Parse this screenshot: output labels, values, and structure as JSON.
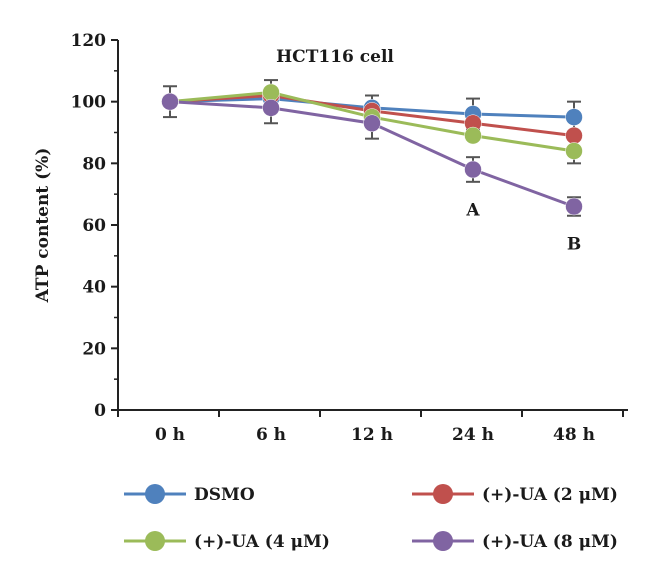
{
  "chart_data": {
    "type": "line",
    "title": "HCT116 cell",
    "xlabel": "",
    "ylabel": "ATP content (%)",
    "categories": [
      "0 h",
      "6 h",
      "12 h",
      "24 h",
      "48 h"
    ],
    "ylim": [
      0,
      120
    ],
    "yticks": [
      0,
      20,
      40,
      60,
      80,
      100,
      120
    ],
    "grid": false,
    "legend_position": "bottom",
    "series": [
      {
        "name": "DSMO",
        "color": "#4f81bd",
        "values": [
          100,
          101,
          98,
          96,
          95
        ],
        "errors": [
          0,
          0,
          0,
          5,
          5
        ]
      },
      {
        "name": "(+)-UA (2 μM)",
        "color": "#c0504d",
        "values": [
          100,
          102,
          97,
          93,
          89
        ],
        "errors": [
          0,
          5,
          5,
          0,
          0
        ]
      },
      {
        "name": "(+)-UA (4 μM)",
        "color": "#9bbb59",
        "values": [
          100,
          103,
          95,
          89,
          84
        ],
        "errors": [
          0,
          0,
          0,
          0,
          4
        ]
      },
      {
        "name": "(+)-UA (8 μM)",
        "color": "#8064a2",
        "values": [
          100,
          98,
          93,
          78,
          66
        ],
        "errors": [
          5,
          5,
          5,
          4,
          3
        ]
      }
    ],
    "annotations": [
      {
        "text": "A",
        "category": "24 h",
        "value": 65
      },
      {
        "text": "B",
        "category": "48 h",
        "value": 54
      }
    ]
  }
}
